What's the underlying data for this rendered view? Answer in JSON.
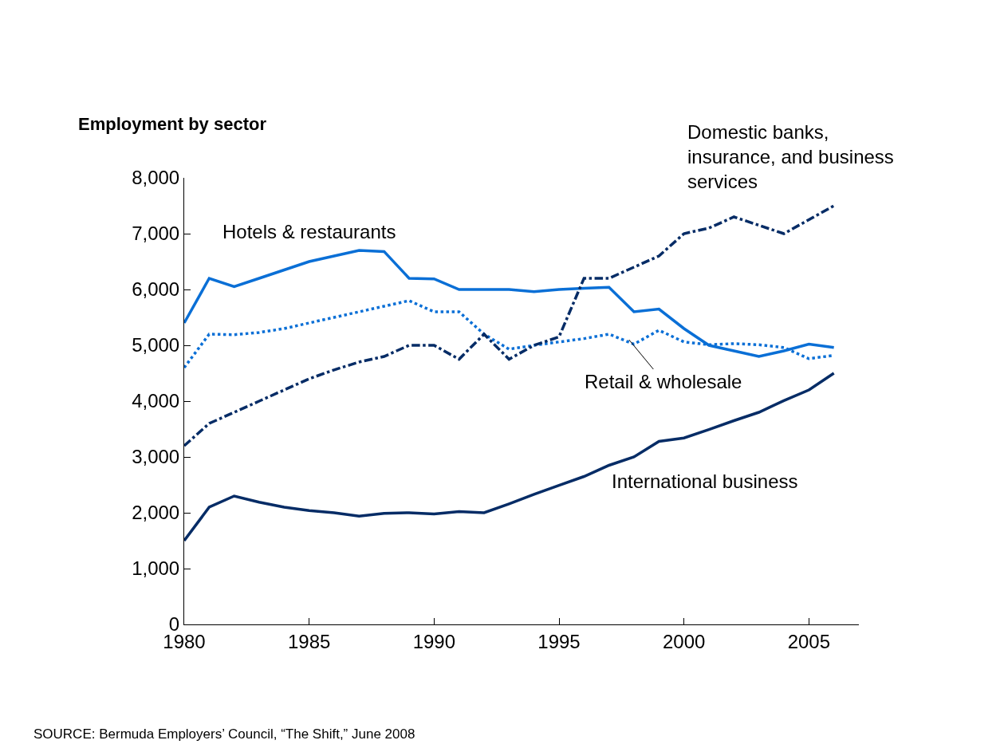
{
  "chart_data": {
    "type": "line",
    "ylabel": "Employment by sector",
    "x": [
      1980,
      1981,
      1982,
      1983,
      1984,
      1985,
      1986,
      1987,
      1988,
      1989,
      1990,
      1991,
      1992,
      1993,
      1994,
      1995,
      1996,
      1997,
      1998,
      1999,
      2000,
      2001,
      2002,
      2003,
      2004,
      2005,
      2006
    ],
    "xlim": [
      1980,
      2007
    ],
    "xticks": [
      1980,
      1985,
      1990,
      1995,
      2000,
      2005
    ],
    "ylim": [
      0,
      8000
    ],
    "yticks": [
      {
        "value": 0,
        "label": "0"
      },
      {
        "value": 1000,
        "label": "1,000"
      },
      {
        "value": 2000,
        "label": "2,000"
      },
      {
        "value": 3000,
        "label": "3,000"
      },
      {
        "value": 4000,
        "label": "4,000"
      },
      {
        "value": 5000,
        "label": "5,000"
      },
      {
        "value": 6000,
        "label": "6,000"
      },
      {
        "value": 7000,
        "label": "7,000"
      },
      {
        "value": 8000,
        "label": "8,000"
      }
    ],
    "legend": false,
    "marker": "none",
    "series": [
      {
        "name": "Hotels & restaurants",
        "color": "#0a6fd6",
        "line_style": "solid",
        "values": [
          5400,
          6200,
          6050,
          6200,
          6350,
          6500,
          6600,
          6700,
          6680,
          6200,
          6190,
          6000,
          6000,
          6000,
          5960,
          6000,
          6020,
          6040,
          5600,
          5650,
          5300,
          5000,
          4900,
          4800,
          4900,
          5020,
          4960
        ]
      },
      {
        "name": "Retail & wholesale",
        "color": "#0a6fd6",
        "line_style": "dotted",
        "values": [
          4600,
          5200,
          5190,
          5230,
          5300,
          5400,
          5500,
          5600,
          5700,
          5800,
          5600,
          5600,
          5200,
          4930,
          5000,
          5060,
          5120,
          5200,
          5020,
          5270,
          5060,
          5010,
          5030,
          5010,
          4960,
          4760,
          4820
        ]
      },
      {
        "name": "Domestic banks,\ninsurance, and business\nservices",
        "color": "#062c66",
        "line_style": "dashdot",
        "values": [
          3200,
          3600,
          3800,
          4000,
          4200,
          4400,
          4560,
          4700,
          4800,
          5000,
          5000,
          4750,
          5200,
          4750,
          5000,
          5150,
          6200,
          6200,
          6400,
          6600,
          7000,
          7100,
          7300,
          7150,
          7000,
          7250,
          7500
        ]
      },
      {
        "name": "International business",
        "color": "#062c66",
        "line_style": "solid",
        "values": [
          1500,
          2100,
          2300,
          2190,
          2100,
          2040,
          2000,
          1940,
          1990,
          2000,
          1980,
          2020,
          2000,
          2160,
          2330,
          2490,
          2650,
          2850,
          3000,
          3280,
          3340,
          3490,
          3650,
          3800,
          4010,
          4200,
          4500
        ]
      }
    ],
    "annotations": [
      "SOURCE: Bermuda Employers’ Council, “The Shift,” June 2008"
    ]
  }
}
